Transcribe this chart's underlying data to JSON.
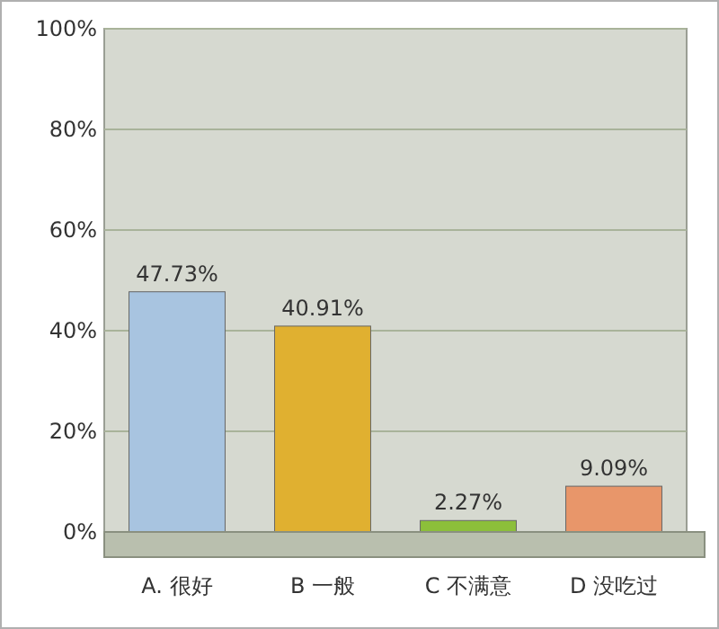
{
  "chart_data": {
    "type": "bar",
    "categories": [
      "A.  很好",
      "B  一般",
      "C  不满意",
      "D  没吃过"
    ],
    "values": [
      47.73,
      40.91,
      2.27,
      9.09
    ],
    "colors": [
      "#a8c4e0",
      "#e0b030",
      "#8cbf3a",
      "#e8966a"
    ],
    "value_labels": [
      "47.73%",
      "40.91%",
      "2.27%",
      "9.09%"
    ],
    "ylim": [
      0,
      100
    ],
    "yticks": [
      {
        "value": 0,
        "label": "0%"
      },
      {
        "value": 20,
        "label": "20%"
      },
      {
        "value": 40,
        "label": "40%"
      },
      {
        "value": 60,
        "label": "60%"
      },
      {
        "value": 80,
        "label": "80%"
      },
      {
        "value": 100,
        "label": "100%"
      }
    ],
    "grid": "y"
  }
}
